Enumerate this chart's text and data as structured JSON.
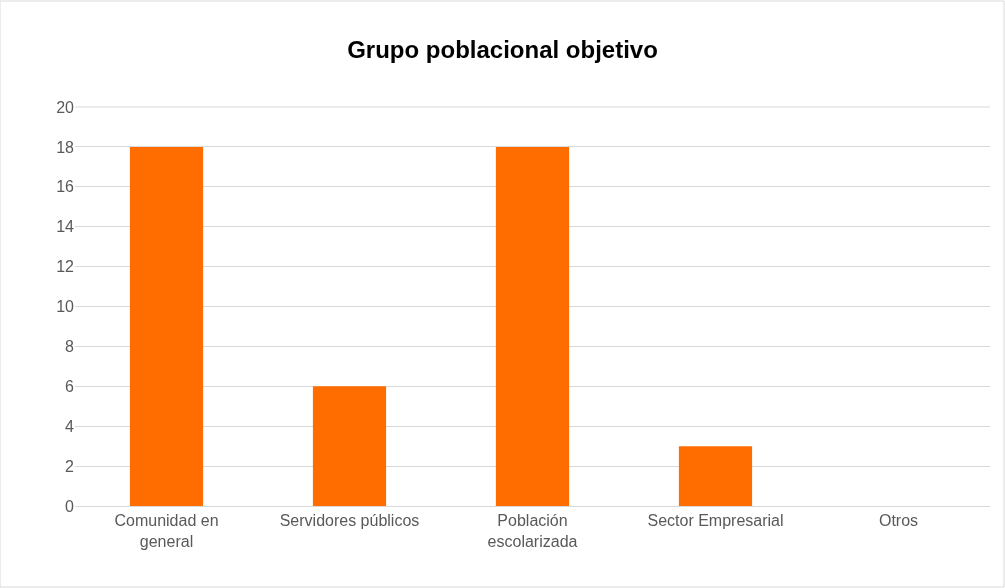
{
  "chart_data": {
    "type": "bar",
    "title": "Grupo poblacional objetivo",
    "categories": [
      "Comunidad en general",
      "Servidores públicos",
      "Población escolarizada",
      "Sector Empresarial",
      "Otros"
    ],
    "values": [
      18,
      6,
      18,
      3,
      0
    ],
    "color": "#ff6d00",
    "ylim": [
      0,
      20
    ],
    "yticks": [
      0,
      2,
      4,
      6,
      8,
      10,
      12,
      14,
      16,
      18,
      20
    ],
    "grid": "y"
  }
}
